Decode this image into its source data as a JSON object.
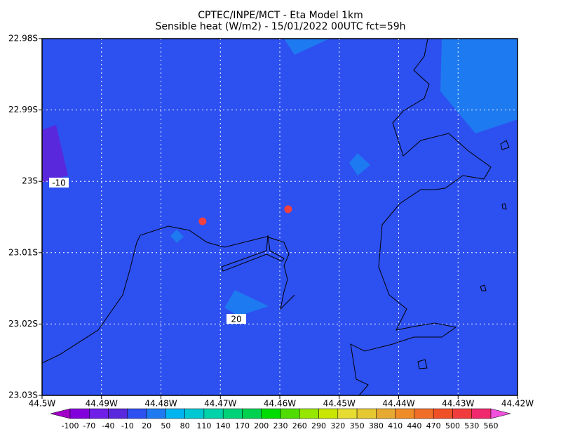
{
  "chart_data": {
    "type": "map",
    "title": "CPTEC/INPE/MCT -  Eta Model 1km",
    "subtitle": "Sensible heat (W/m2) - 15/01/2022 00UTC fct=59h",
    "xlim": [
      -44.5,
      -44.42
    ],
    "ylim": [
      -23.03,
      -22.98
    ],
    "xticks": [
      {
        "value": -44.5,
        "label": "44.5W"
      },
      {
        "value": -44.49,
        "label": "44.49W"
      },
      {
        "value": -44.48,
        "label": "44.48W"
      },
      {
        "value": -44.47,
        "label": "44.47W"
      },
      {
        "value": -44.46,
        "label": "44.46W"
      },
      {
        "value": -44.45,
        "label": "44.45W"
      },
      {
        "value": -44.44,
        "label": "44.44W"
      },
      {
        "value": -44.43,
        "label": "44.43W"
      },
      {
        "value": -44.42,
        "label": "44.42W"
      }
    ],
    "yticks": [
      {
        "value": -22.98,
        "label": "22.98S"
      },
      {
        "value": -22.99,
        "label": "22.99S"
      },
      {
        "value": -23.0,
        "label": "23S"
      },
      {
        "value": -23.01,
        "label": "23.01S"
      },
      {
        "value": -23.02,
        "label": "23.02S"
      },
      {
        "value": -23.03,
        "label": "23.03S"
      }
    ],
    "grid": true,
    "colorbar_levels": [
      -100,
      -70,
      -40,
      -10,
      20,
      50,
      80,
      110,
      140,
      170,
      200,
      230,
      260,
      290,
      320,
      350,
      380,
      410,
      440,
      470,
      500,
      530,
      560
    ],
    "colorbar_colors": [
      "#a000c8",
      "#8200dc",
      "#6e1ee6",
      "#5a28dc",
      "#2d50f0",
      "#1e7af0",
      "#00b4f0",
      "#00c8d2",
      "#00d2aa",
      "#00d278",
      "#00d250",
      "#00dc00",
      "#50dc00",
      "#96e600",
      "#c8e600",
      "#e6dc32",
      "#e6c832",
      "#e6aa32",
      "#f08c28",
      "#f06e28",
      "#f05028",
      "#f03c3c",
      "#f0286e",
      "#f050dc"
    ],
    "contour_labels": [
      -10,
      20
    ],
    "points": {
      "color": "#f04040",
      "lon": [
        -44.473,
        -44.4586
      ],
      "lat": [
        -23.0056,
        -23.0039
      ]
    }
  }
}
